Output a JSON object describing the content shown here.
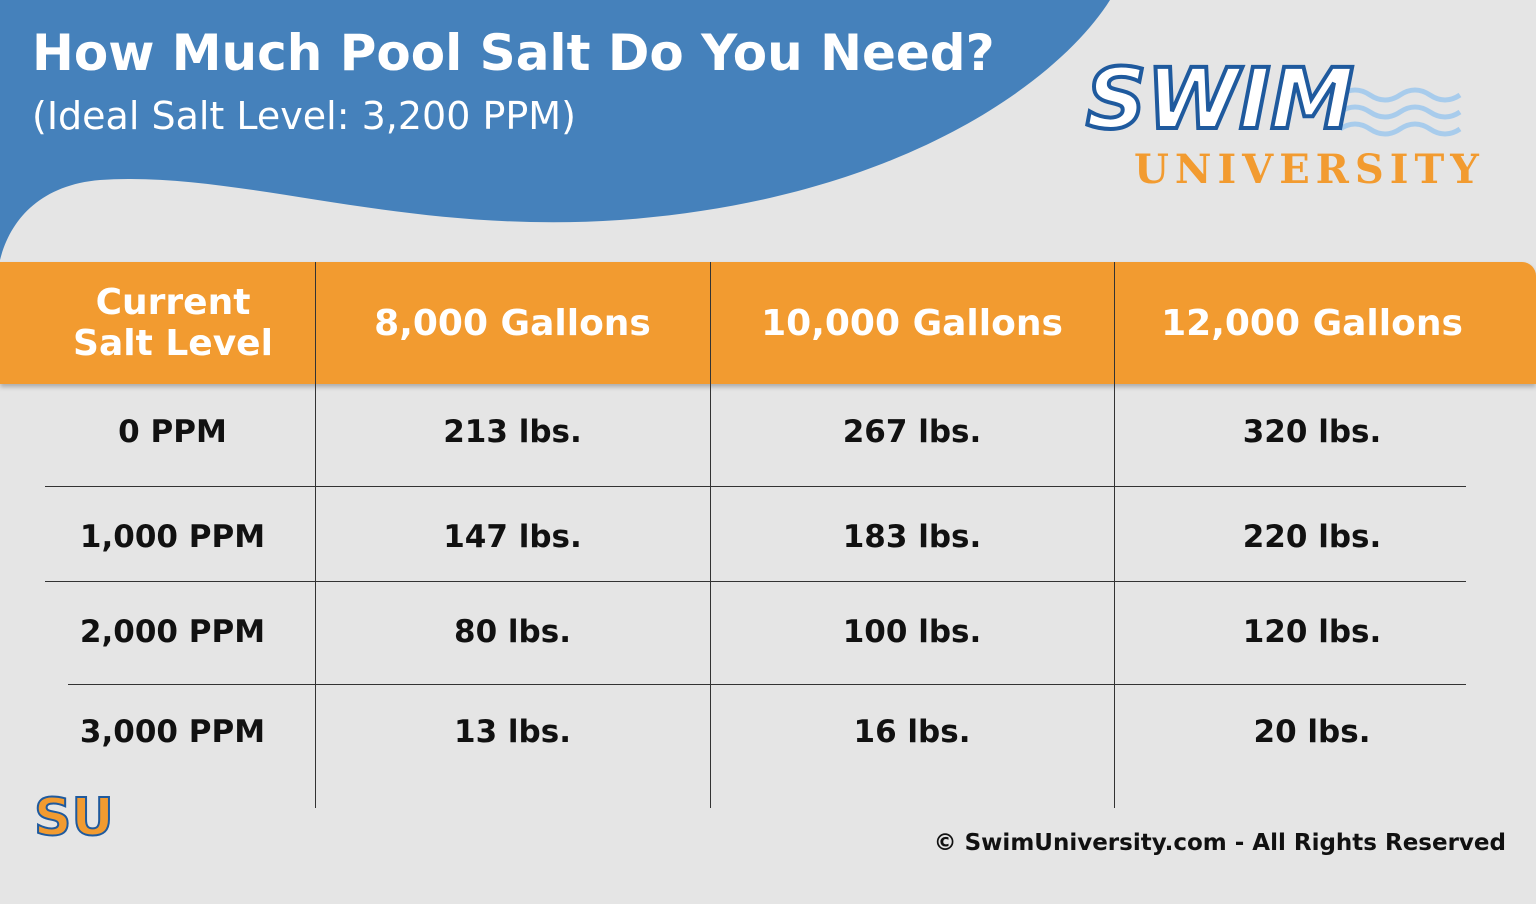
{
  "header": {
    "title": "How Much Pool Salt Do You Need?",
    "subtitle": "(Ideal Salt Level: 3,200 PPM)"
  },
  "logo": {
    "word": "SWIM",
    "subword": "UNIVERSITY",
    "badge": "SU"
  },
  "table": {
    "columns": [
      "Current Salt Level",
      "8,000 Gallons",
      "10,000 Gallons",
      "12,000 Gallons"
    ],
    "rows": [
      [
        "0 PPM",
        "213 lbs.",
        "267 lbs.",
        "320 lbs."
      ],
      [
        "1,000 PPM",
        "147 lbs.",
        "183 lbs.",
        "220 lbs."
      ],
      [
        "2,000 PPM",
        "80 lbs.",
        "100 lbs.",
        "120 lbs."
      ],
      [
        "3,000 PPM",
        "13 lbs.",
        "16 lbs.",
        "20 lbs."
      ]
    ]
  },
  "footer": {
    "copyright": "© SwimUniversity.com - All Rights Reserved"
  }
}
